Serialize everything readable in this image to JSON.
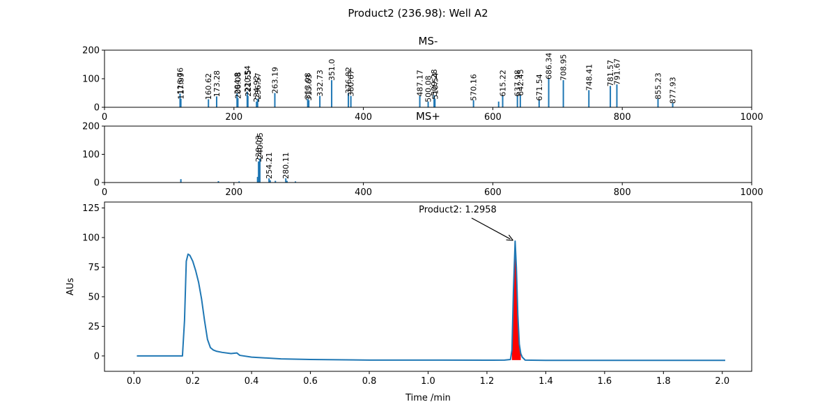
{
  "figure": {
    "title": "Product2 (236.98): Well A2"
  },
  "colors": {
    "series": "#1f77b4",
    "peak_fill": "#ff0000",
    "axes": "#000000"
  },
  "chart_data": [
    {
      "id": "ms_neg",
      "type": "bar",
      "title": "MS-",
      "xlim": [
        0,
        1000
      ],
      "ylim": [
        0,
        200
      ],
      "xticks": [
        "0",
        "200",
        "400",
        "600",
        "800",
        "1000"
      ],
      "yticks": [
        "0",
        "100",
        "200"
      ],
      "peaks": [
        {
          "x": 116.76,
          "y": 48,
          "label": "116.76"
        },
        {
          "x": 117.99,
          "y": 30,
          "label": "117.99"
        },
        {
          "x": 160.62,
          "y": 28,
          "label": "160.62"
        },
        {
          "x": 173.28,
          "y": 38,
          "label": "173.28"
        },
        {
          "x": 204.8,
          "y": 48,
          "label": "204.8"
        },
        {
          "x": 206.08,
          "y": 32,
          "label": "206.08"
        },
        {
          "x": 220.54,
          "y": 55,
          "label": "220.54"
        },
        {
          "x": 221.55,
          "y": 40,
          "label": "221.55"
        },
        {
          "x": 234.92,
          "y": 20,
          "label": "234.92"
        },
        {
          "x": 236.57,
          "y": 30,
          "label": "236.57"
        },
        {
          "x": 263.19,
          "y": 50,
          "label": "263.19"
        },
        {
          "x": 313.98,
          "y": 30,
          "label": "313.98"
        },
        {
          "x": 315.63,
          "y": 25,
          "label": "315.63"
        },
        {
          "x": 332.73,
          "y": 40,
          "label": "332.73"
        },
        {
          "x": 351.0,
          "y": 95,
          "label": "351.0"
        },
        {
          "x": 376.82,
          "y": 50,
          "label": "376.82"
        },
        {
          "x": 380.67,
          "y": 40,
          "label": "380.67"
        },
        {
          "x": 487.17,
          "y": 40,
          "label": "487.17"
        },
        {
          "x": 500.08,
          "y": 20,
          "label": "500.08"
        },
        {
          "x": 509.28,
          "y": 42,
          "label": "509.28"
        },
        {
          "x": 510.54,
          "y": 30,
          "label": "510.54"
        },
        {
          "x": 570.16,
          "y": 25,
          "label": "570.16"
        },
        {
          "x": 615.22,
          "y": 40,
          "label": "615.22"
        },
        {
          "x": 637.98,
          "y": 40,
          "label": "637.98"
        },
        {
          "x": 642.45,
          "y": 42,
          "label": "642.45"
        },
        {
          "x": 671.54,
          "y": 25,
          "label": "671.54"
        },
        {
          "x": 686.34,
          "y": 100,
          "label": "686.34"
        },
        {
          "x": 708.95,
          "y": 95,
          "label": "708.95"
        },
        {
          "x": 748.41,
          "y": 60,
          "label": "748.41"
        },
        {
          "x": 781.57,
          "y": 75,
          "label": "781.57"
        },
        {
          "x": 791.67,
          "y": 80,
          "label": "791.67"
        },
        {
          "x": 855.23,
          "y": 30,
          "label": "855.23"
        },
        {
          "x": 877.93,
          "y": 15,
          "label": "877.93"
        }
      ],
      "unlabeled_peaks": [
        {
          "x": 609,
          "y": 20
        }
      ]
    },
    {
      "id": "ms_pos",
      "type": "bar",
      "title": "MS+",
      "xlim": [
        0,
        1000
      ],
      "ylim": [
        0,
        200
      ],
      "xticks": [
        "0",
        "200",
        "400",
        "600",
        "800",
        "1000"
      ],
      "yticks": [
        "0",
        "100",
        "200"
      ],
      "peaks": [
        {
          "x": 238.03,
          "y": 75,
          "label": "238.03"
        },
        {
          "x": 240.05,
          "y": 85,
          "label": "240.05"
        },
        {
          "x": 254.21,
          "y": 15,
          "label": "254.21"
        },
        {
          "x": 280.11,
          "y": 15,
          "label": "280.11"
        }
      ],
      "unlabeled_peaks": [
        {
          "x": 118,
          "y": 12
        },
        {
          "x": 176,
          "y": 5
        },
        {
          "x": 208,
          "y": 4
        },
        {
          "x": 236.5,
          "y": 20
        },
        {
          "x": 256,
          "y": 8
        },
        {
          "x": 264,
          "y": 6
        },
        {
          "x": 282,
          "y": 6
        },
        {
          "x": 295,
          "y": 4
        }
      ]
    },
    {
      "id": "uv_trace",
      "type": "line",
      "xlabel": "Time /min",
      "ylabel": "AUs",
      "xlim": [
        -0.1,
        2.1
      ],
      "ylim": [
        -13,
        130
      ],
      "xticks": [
        "0.0",
        "0.2",
        "0.4",
        "0.6",
        "0.8",
        "1.0",
        "1.2",
        "1.4",
        "1.6",
        "1.8",
        "2.0"
      ],
      "yticks": [
        "0",
        "25",
        "50",
        "75",
        "100",
        "125"
      ],
      "series": [
        {
          "x": [
            0.01,
            0.1,
            0.165,
            0.172,
            0.178,
            0.184,
            0.19,
            0.2,
            0.21,
            0.22,
            0.23,
            0.24,
            0.25,
            0.26,
            0.27,
            0.28,
            0.3,
            0.33,
            0.35,
            0.36,
            0.4,
            0.5,
            0.6,
            0.8,
            1.0,
            1.2,
            1.22,
            1.26,
            1.28,
            1.285,
            1.29,
            1.2958,
            1.3,
            1.305,
            1.31,
            1.315,
            1.32,
            1.33,
            1.4,
            1.6,
            1.8,
            2.01
          ],
          "y": [
            0,
            0,
            0,
            30,
            80,
            86,
            85,
            80,
            72,
            62,
            48,
            30,
            14,
            7,
            5,
            4,
            3,
            2,
            2.5,
            0.5,
            -1,
            -2.5,
            -3,
            -3.5,
            -3.5,
            -3.6,
            -3.6,
            -3.5,
            -3,
            5,
            55,
            97,
            75,
            35,
            10,
            2,
            -1,
            -3.5,
            -3.7,
            -3.7,
            -3.7,
            -3.7
          ]
        }
      ],
      "integrated_peak": {
        "from": 1.282,
        "to": 1.318
      },
      "annotation": {
        "text": "Product2: 1.2958",
        "x": 1.2958,
        "y": 97
      }
    }
  ]
}
